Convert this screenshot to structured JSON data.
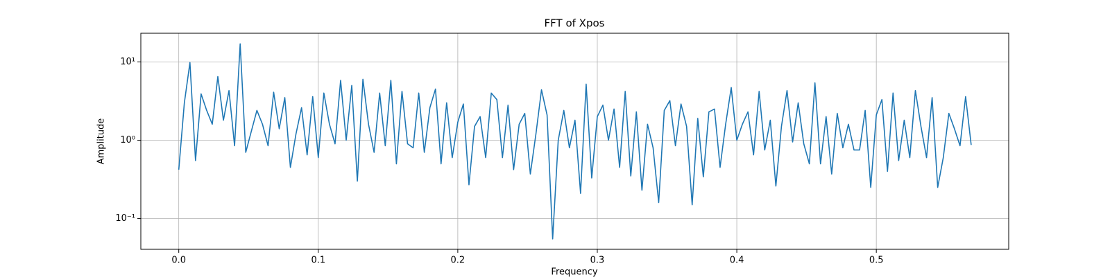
{
  "chart_data": {
    "type": "line",
    "title": "FFT of Xpos",
    "x_label": "Frequency",
    "y_label": "Amplitude",
    "x": [
      0,
      0.004,
      0.008,
      0.012,
      0.016,
      0.02,
      0.024,
      0.028,
      0.032,
      0.036,
      0.04,
      0.044,
      0.048,
      0.052,
      0.056,
      0.06,
      0.064,
      0.068,
      0.072,
      0.076,
      0.08,
      0.084,
      0.088,
      0.092,
      0.096,
      0.1,
      0.104,
      0.108,
      0.112,
      0.116,
      0.12,
      0.124,
      0.128,
      0.132,
      0.136,
      0.14,
      0.144,
      0.148,
      0.152,
      0.156,
      0.16,
      0.164,
      0.168,
      0.172,
      0.176,
      0.18,
      0.184,
      0.188,
      0.192,
      0.196,
      0.2,
      0.204,
      0.208,
      0.212,
      0.216,
      0.22,
      0.224,
      0.228,
      0.232,
      0.236,
      0.24,
      0.244,
      0.248,
      0.252,
      0.256,
      0.26,
      0.264,
      0.268,
      0.272,
      0.276,
      0.28,
      0.284,
      0.288,
      0.292,
      0.296,
      0.3,
      0.304,
      0.308,
      0.312,
      0.316,
      0.32,
      0.324,
      0.328,
      0.332,
      0.336,
      0.34,
      0.344,
      0.348,
      0.352,
      0.356,
      0.36,
      0.364,
      0.368,
      0.372,
      0.376,
      0.38,
      0.384,
      0.388,
      0.392,
      0.396,
      0.4,
      0.404,
      0.408,
      0.412,
      0.416,
      0.42,
      0.424,
      0.428,
      0.432,
      0.436,
      0.44,
      0.444,
      0.448,
      0.452,
      0.456,
      0.46,
      0.464,
      0.468,
      0.472,
      0.476,
      0.48,
      0.484,
      0.488,
      0.492,
      0.496,
      0.5,
      0.504,
      0.508,
      0.512,
      0.516,
      0.52,
      0.524,
      0.528,
      0.532,
      0.536,
      0.54,
      0.544,
      0.548,
      0.552,
      0.556,
      0.56,
      0.564,
      0.568
    ],
    "series": [
      {
        "name": "Xpos",
        "color": "#1f77b4",
        "values": [
          0.42,
          3.0,
          9.8,
          0.55,
          3.9,
          2.4,
          1.6,
          6.5,
          1.8,
          4.3,
          0.85,
          17.0,
          0.7,
          1.3,
          2.4,
          1.6,
          0.85,
          4.1,
          1.4,
          3.5,
          0.45,
          1.2,
          2.6,
          0.65,
          3.6,
          0.6,
          4.0,
          1.6,
          0.9,
          5.8,
          1.0,
          5.0,
          0.3,
          6.0,
          1.6,
          0.7,
          4.0,
          0.85,
          5.8,
          0.5,
          4.2,
          0.9,
          0.8,
          4.0,
          0.7,
          2.6,
          4.5,
          0.5,
          3.0,
          0.6,
          1.7,
          2.9,
          0.27,
          1.5,
          2.0,
          0.6,
          4.0,
          3.3,
          0.6,
          2.8,
          0.42,
          1.6,
          2.2,
          0.37,
          1.2,
          4.4,
          2.1,
          0.055,
          1.0,
          2.4,
          0.8,
          1.8,
          0.21,
          5.2,
          0.33,
          2.0,
          2.8,
          1.0,
          2.5,
          0.45,
          4.2,
          0.35,
          2.3,
          0.23,
          1.6,
          0.8,
          0.16,
          2.4,
          3.2,
          0.85,
          2.9,
          1.5,
          0.15,
          1.9,
          0.34,
          2.3,
          2.5,
          0.45,
          1.6,
          4.7,
          1.0,
          1.6,
          2.3,
          0.65,
          4.2,
          0.75,
          1.8,
          0.26,
          1.5,
          4.3,
          0.95,
          3.0,
          0.9,
          0.5,
          5.4,
          0.5,
          2.0,
          0.37,
          2.2,
          0.8,
          1.6,
          0.75,
          0.75,
          2.4,
          0.25,
          2.1,
          3.3,
          0.4,
          4.0,
          0.55,
          1.8,
          0.6,
          4.3,
          1.5,
          0.6,
          3.5,
          0.25,
          0.6,
          2.2,
          1.4,
          0.85,
          3.6,
          0.87
        ]
      }
    ],
    "xlim": [
      -0.0272,
      0.5949
    ],
    "xticks": [
      {
        "value": 0,
        "label": "0.0"
      },
      0.1,
      0.2,
      0.3,
      0.4,
      0.5
    ],
    "ylim": [
      0.0405,
      23.2
    ],
    "y_scale": "log",
    "yticks": [
      {
        "value": 0.1,
        "label": "10⁻¹"
      },
      {
        "value": 1,
        "label": "10⁰"
      },
      {
        "value": 10,
        "label": "10¹"
      }
    ],
    "grid": true
  }
}
